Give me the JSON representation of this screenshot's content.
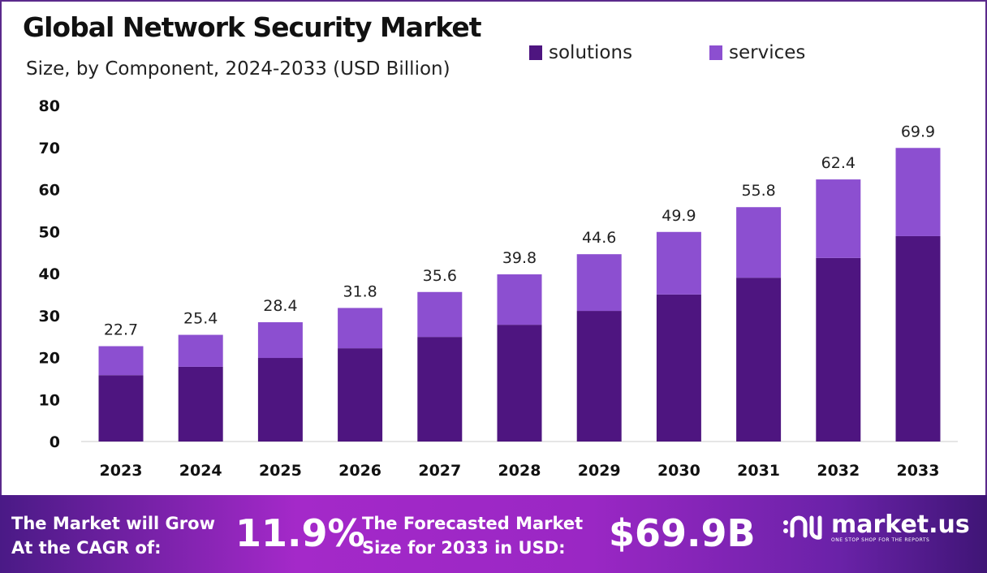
{
  "chart_data": {
    "type": "bar",
    "stacked": true,
    "title": "Global Network Security Market",
    "subtitle": "Size, by Component, 2024-2033 (USD Billion)",
    "categories": [
      "2023",
      "2024",
      "2025",
      "2026",
      "2027",
      "2028",
      "2029",
      "2030",
      "2031",
      "2032",
      "2033"
    ],
    "series": [
      {
        "name": "solutions",
        "color": "#4e1580",
        "values": [
          15.8,
          17.8,
          19.9,
          22.2,
          24.9,
          27.8,
          31.1,
          35.0,
          39.0,
          43.7,
          48.9
        ]
      },
      {
        "name": "services",
        "color": "#8c4fd0",
        "values": [
          6.9,
          7.6,
          8.5,
          9.6,
          10.7,
          12.0,
          13.5,
          14.9,
          16.8,
          18.7,
          21.0
        ]
      }
    ],
    "totals": [
      "22.7",
      "25.4",
      "28.4",
      "31.8",
      "35.6",
      "39.8",
      "44.6",
      "49.9",
      "55.8",
      "62.4",
      "69.9"
    ],
    "yticks": [
      "0",
      "10",
      "20",
      "30",
      "40",
      "50",
      "60",
      "70",
      "80"
    ],
    "ylim": [
      0,
      80
    ],
    "grid": false,
    "legend_position": "top"
  },
  "footer": {
    "cagr_text_1": "The Market will Grow",
    "cagr_text_2": "At the CAGR of:",
    "cagr_value": "11.9%",
    "forecast_text_1": "The Forecasted Market",
    "forecast_text_2": "Size for 2033 in USD:",
    "forecast_value": "$69.9B",
    "brand": "market.us",
    "tagline": "ONE STOP SHOP FOR THE REPORTS"
  }
}
